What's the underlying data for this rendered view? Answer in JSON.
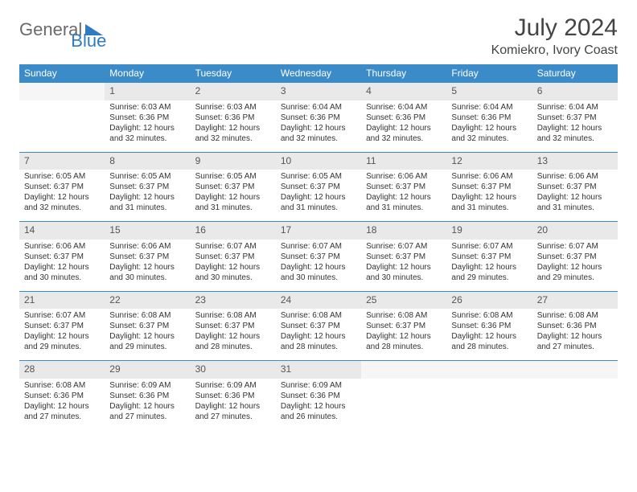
{
  "logo": {
    "word1": "General",
    "word2": "Blue",
    "tri_color": "#2f7bbf"
  },
  "title": "July 2024",
  "location": "Komiekro, Ivory Coast",
  "day_headers": [
    "Sunday",
    "Monday",
    "Tuesday",
    "Wednesday",
    "Thursday",
    "Friday",
    "Saturday"
  ],
  "colors": {
    "header_bg": "#3b8bc9",
    "header_text": "#ffffff",
    "daynum_bg": "#e9e9e9",
    "daynum_text": "#555555",
    "body_text": "#333333",
    "row_border": "#3b8bc9",
    "logo_gray": "#6a6a6a",
    "logo_blue": "#2f7bbf"
  },
  "typography": {
    "title_fontsize": 30,
    "location_fontsize": 16,
    "header_fontsize": 12,
    "daynum_fontsize": 12,
    "detail_fontsize": 10
  },
  "weeks": [
    [
      null,
      {
        "n": "1",
        "sr": "6:03 AM",
        "ss": "6:36 PM",
        "dl": "12 hours and 32 minutes."
      },
      {
        "n": "2",
        "sr": "6:03 AM",
        "ss": "6:36 PM",
        "dl": "12 hours and 32 minutes."
      },
      {
        "n": "3",
        "sr": "6:04 AM",
        "ss": "6:36 PM",
        "dl": "12 hours and 32 minutes."
      },
      {
        "n": "4",
        "sr": "6:04 AM",
        "ss": "6:36 PM",
        "dl": "12 hours and 32 minutes."
      },
      {
        "n": "5",
        "sr": "6:04 AM",
        "ss": "6:36 PM",
        "dl": "12 hours and 32 minutes."
      },
      {
        "n": "6",
        "sr": "6:04 AM",
        "ss": "6:37 PM",
        "dl": "12 hours and 32 minutes."
      }
    ],
    [
      {
        "n": "7",
        "sr": "6:05 AM",
        "ss": "6:37 PM",
        "dl": "12 hours and 32 minutes."
      },
      {
        "n": "8",
        "sr": "6:05 AM",
        "ss": "6:37 PM",
        "dl": "12 hours and 31 minutes."
      },
      {
        "n": "9",
        "sr": "6:05 AM",
        "ss": "6:37 PM",
        "dl": "12 hours and 31 minutes."
      },
      {
        "n": "10",
        "sr": "6:05 AM",
        "ss": "6:37 PM",
        "dl": "12 hours and 31 minutes."
      },
      {
        "n": "11",
        "sr": "6:06 AM",
        "ss": "6:37 PM",
        "dl": "12 hours and 31 minutes."
      },
      {
        "n": "12",
        "sr": "6:06 AM",
        "ss": "6:37 PM",
        "dl": "12 hours and 31 minutes."
      },
      {
        "n": "13",
        "sr": "6:06 AM",
        "ss": "6:37 PM",
        "dl": "12 hours and 31 minutes."
      }
    ],
    [
      {
        "n": "14",
        "sr": "6:06 AM",
        "ss": "6:37 PM",
        "dl": "12 hours and 30 minutes."
      },
      {
        "n": "15",
        "sr": "6:06 AM",
        "ss": "6:37 PM",
        "dl": "12 hours and 30 minutes."
      },
      {
        "n": "16",
        "sr": "6:07 AM",
        "ss": "6:37 PM",
        "dl": "12 hours and 30 minutes."
      },
      {
        "n": "17",
        "sr": "6:07 AM",
        "ss": "6:37 PM",
        "dl": "12 hours and 30 minutes."
      },
      {
        "n": "18",
        "sr": "6:07 AM",
        "ss": "6:37 PM",
        "dl": "12 hours and 30 minutes."
      },
      {
        "n": "19",
        "sr": "6:07 AM",
        "ss": "6:37 PM",
        "dl": "12 hours and 29 minutes."
      },
      {
        "n": "20",
        "sr": "6:07 AM",
        "ss": "6:37 PM",
        "dl": "12 hours and 29 minutes."
      }
    ],
    [
      {
        "n": "21",
        "sr": "6:07 AM",
        "ss": "6:37 PM",
        "dl": "12 hours and 29 minutes."
      },
      {
        "n": "22",
        "sr": "6:08 AM",
        "ss": "6:37 PM",
        "dl": "12 hours and 29 minutes."
      },
      {
        "n": "23",
        "sr": "6:08 AM",
        "ss": "6:37 PM",
        "dl": "12 hours and 28 minutes."
      },
      {
        "n": "24",
        "sr": "6:08 AM",
        "ss": "6:37 PM",
        "dl": "12 hours and 28 minutes."
      },
      {
        "n": "25",
        "sr": "6:08 AM",
        "ss": "6:37 PM",
        "dl": "12 hours and 28 minutes."
      },
      {
        "n": "26",
        "sr": "6:08 AM",
        "ss": "6:36 PM",
        "dl": "12 hours and 28 minutes."
      },
      {
        "n": "27",
        "sr": "6:08 AM",
        "ss": "6:36 PM",
        "dl": "12 hours and 27 minutes."
      }
    ],
    [
      {
        "n": "28",
        "sr": "6:08 AM",
        "ss": "6:36 PM",
        "dl": "12 hours and 27 minutes."
      },
      {
        "n": "29",
        "sr": "6:09 AM",
        "ss": "6:36 PM",
        "dl": "12 hours and 27 minutes."
      },
      {
        "n": "30",
        "sr": "6:09 AM",
        "ss": "6:36 PM",
        "dl": "12 hours and 27 minutes."
      },
      {
        "n": "31",
        "sr": "6:09 AM",
        "ss": "6:36 PM",
        "dl": "12 hours and 26 minutes."
      },
      null,
      null,
      null
    ]
  ],
  "labels": {
    "sunrise": "Sunrise:",
    "sunset": "Sunset:",
    "daylight": "Daylight:"
  }
}
